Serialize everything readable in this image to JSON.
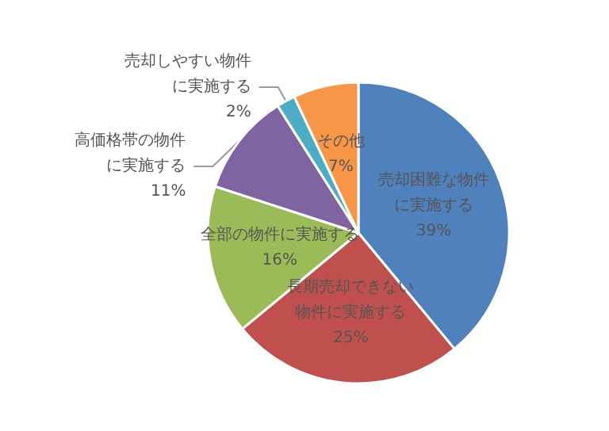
{
  "chart_data": {
    "type": "pie",
    "categories": [
      "売却困難な物件に実施する",
      "長期売却できない物件に実施する",
      "全部の物件に実施する",
      "高価格帯の物件に実施する",
      "売却しやすい物件に実施する",
      "その他"
    ],
    "values": [
      39,
      25,
      16,
      11,
      2,
      7
    ],
    "colors": [
      "#4f81bd",
      "#c0504d",
      "#9bbb59",
      "#8064a2",
      "#4bacc6",
      "#f79646"
    ],
    "value_labels": [
      "39%",
      "25%",
      "16%",
      "11%",
      "2%",
      "7%"
    ],
    "legend": false
  }
}
